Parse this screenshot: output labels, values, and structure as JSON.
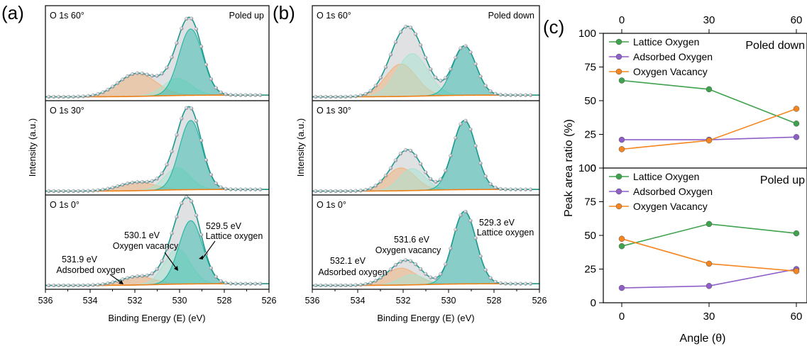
{
  "chart_data": [
    {
      "type": "line",
      "panel_label": "(a)",
      "xlabel": "Binding Energy (E) (eV)",
      "ylabel": "Intensity (a.u.)",
      "xlim": [
        536,
        526
      ],
      "xticks": [
        "536",
        "534",
        "532",
        "530",
        "528",
        "526"
      ],
      "subpanels": [
        {
          "title": "O 1s 60°",
          "corner_label": "Poled up",
          "peaks": [
            {
              "component": "Lattice oxygen",
              "center": 529.5,
              "height": 0.78,
              "fwhm": 1.25,
              "color": "#1fb5a3"
            },
            {
              "component": "Oxygen vacancy",
              "center": 530.1,
              "height": 0.2,
              "fwhm": 1.45,
              "color": "#a7e3d2"
            },
            {
              "component": "Adsorbed oxygen",
              "center": 531.9,
              "height": 0.27,
              "fwhm": 2.0,
              "color": "#f2b27a"
            }
          ],
          "peak_labels": []
        },
        {
          "title": "O 1s 30°",
          "corner_label": "",
          "peaks": [
            {
              "component": "Lattice oxygen",
              "center": 529.5,
              "height": 0.82,
              "fwhm": 1.2,
              "color": "#1fb5a3"
            },
            {
              "component": "Oxygen vacancy",
              "center": 530.1,
              "height": 0.26,
              "fwhm": 1.35,
              "color": "#a7e3d2"
            },
            {
              "component": "Adsorbed oxygen",
              "center": 531.9,
              "height": 0.1,
              "fwhm": 1.9,
              "color": "#f2b27a"
            }
          ],
          "peak_labels": []
        },
        {
          "title": "O 1s 0°",
          "corner_label": "",
          "peaks": [
            {
              "component": "Lattice oxygen",
              "center": 529.5,
              "height": 0.75,
              "fwhm": 1.25,
              "color": "#1fb5a3"
            },
            {
              "component": "Oxygen vacancy",
              "center": 530.1,
              "height": 0.42,
              "fwhm": 1.35,
              "color": "#a7e3d2"
            },
            {
              "component": "Adsorbed oxygen",
              "center": 531.9,
              "height": 0.1,
              "fwhm": 1.8,
              "color": "#f2b27a"
            }
          ],
          "peak_labels": [
            {
              "energy": "529.5 eV",
              "name": "Lattice oxygen"
            },
            {
              "energy": "530.1 eV",
              "name": "Oxygen vacancy"
            },
            {
              "energy": "531.9 eV",
              "name": "Adsorbed oxygen"
            }
          ]
        }
      ]
    },
    {
      "type": "line",
      "panel_label": "(b)",
      "xlabel": "Binding Energy (E) (eV)",
      "ylabel": "Intensity (a.u.)",
      "xlim": [
        536,
        526
      ],
      "xticks": [
        "536",
        "534",
        "532",
        "530",
        "528",
        "526"
      ],
      "subpanels": [
        {
          "title": "O 1s 60°",
          "corner_label": "Poled down",
          "peaks": [
            {
              "component": "Lattice oxygen",
              "center": 529.3,
              "height": 0.58,
              "fwhm": 1.2,
              "color": "#1fb5a3"
            },
            {
              "component": "Oxygen vacancy",
              "center": 531.6,
              "height": 0.5,
              "fwhm": 1.6,
              "color": "#a7e3d2"
            },
            {
              "component": "Adsorbed oxygen",
              "center": 532.1,
              "height": 0.38,
              "fwhm": 1.6,
              "color": "#f2b27a"
            }
          ],
          "peak_labels": []
        },
        {
          "title": "O 1s 30°",
          "corner_label": "",
          "peaks": [
            {
              "component": "Lattice oxygen",
              "center": 529.3,
              "height": 0.82,
              "fwhm": 1.2,
              "color": "#1fb5a3"
            },
            {
              "component": "Oxygen vacancy",
              "center": 531.6,
              "height": 0.26,
              "fwhm": 1.3,
              "color": "#a7e3d2"
            },
            {
              "component": "Adsorbed oxygen",
              "center": 532.1,
              "height": 0.27,
              "fwhm": 1.5,
              "color": "#f2b27a"
            }
          ],
          "peak_labels": []
        },
        {
          "title": "O 1s 0°",
          "corner_label": "",
          "peaks": [
            {
              "component": "Lattice oxygen",
              "center": 529.3,
              "height": 0.86,
              "fwhm": 1.2,
              "color": "#1fb5a3"
            },
            {
              "component": "Oxygen vacancy",
              "center": 531.6,
              "height": 0.12,
              "fwhm": 1.3,
              "color": "#a7e3d2"
            },
            {
              "component": "Adsorbed oxygen",
              "center": 532.1,
              "height": 0.2,
              "fwhm": 1.6,
              "color": "#f2b27a"
            }
          ],
          "peak_labels": [
            {
              "energy": "529.3 eV",
              "name": "Lattice oxygen"
            },
            {
              "energy": "531.6 eV",
              "name": "Oxygen vacancy"
            },
            {
              "energy": "532.1 eV",
              "name": "Adsorbed oxygen"
            }
          ]
        }
      ]
    },
    {
      "type": "line",
      "panel_label": "(c)",
      "xlabel": "Angle (θ)",
      "ylabel": "Peak area ratio (%)",
      "x": [
        0,
        30,
        60
      ],
      "xticks": [
        "0",
        "30",
        "60"
      ],
      "ylim": [
        0,
        100
      ],
      "yticks": [
        "0",
        "25",
        "50",
        "75",
        "100"
      ],
      "legend_position": "top-left",
      "subpanels": [
        {
          "corner_label": "Poled down",
          "series": [
            {
              "name": "Lattice Oxygen",
              "color": "#3fa34d",
              "values": [
                65,
                58.5,
                33
              ]
            },
            {
              "name": "Adsorbed Oxygen",
              "color": "#8e5fc7",
              "values": [
                21,
                21,
                23
              ]
            },
            {
              "name": "Oxygen Vacancy",
              "color": "#f5861f",
              "values": [
                14,
                20.5,
                44
              ]
            }
          ]
        },
        {
          "corner_label": "Poled up",
          "series": [
            {
              "name": "Lattice Oxygen",
              "color": "#3fa34d",
              "values": [
                42,
                58.5,
                51.5
              ]
            },
            {
              "name": "Adsorbed Oxygen",
              "color": "#8e5fc7",
              "values": [
                11,
                12.5,
                25
              ]
            },
            {
              "name": "Oxygen Vacancy",
              "color": "#f5861f",
              "values": [
                47.5,
                29,
                23.5
              ]
            }
          ]
        }
      ]
    }
  ],
  "colors": {
    "envelope": "#1a9a8f",
    "envelope_fill": "#b9bcc0",
    "background": "#f07f16",
    "markers": "#9aa3ab"
  }
}
